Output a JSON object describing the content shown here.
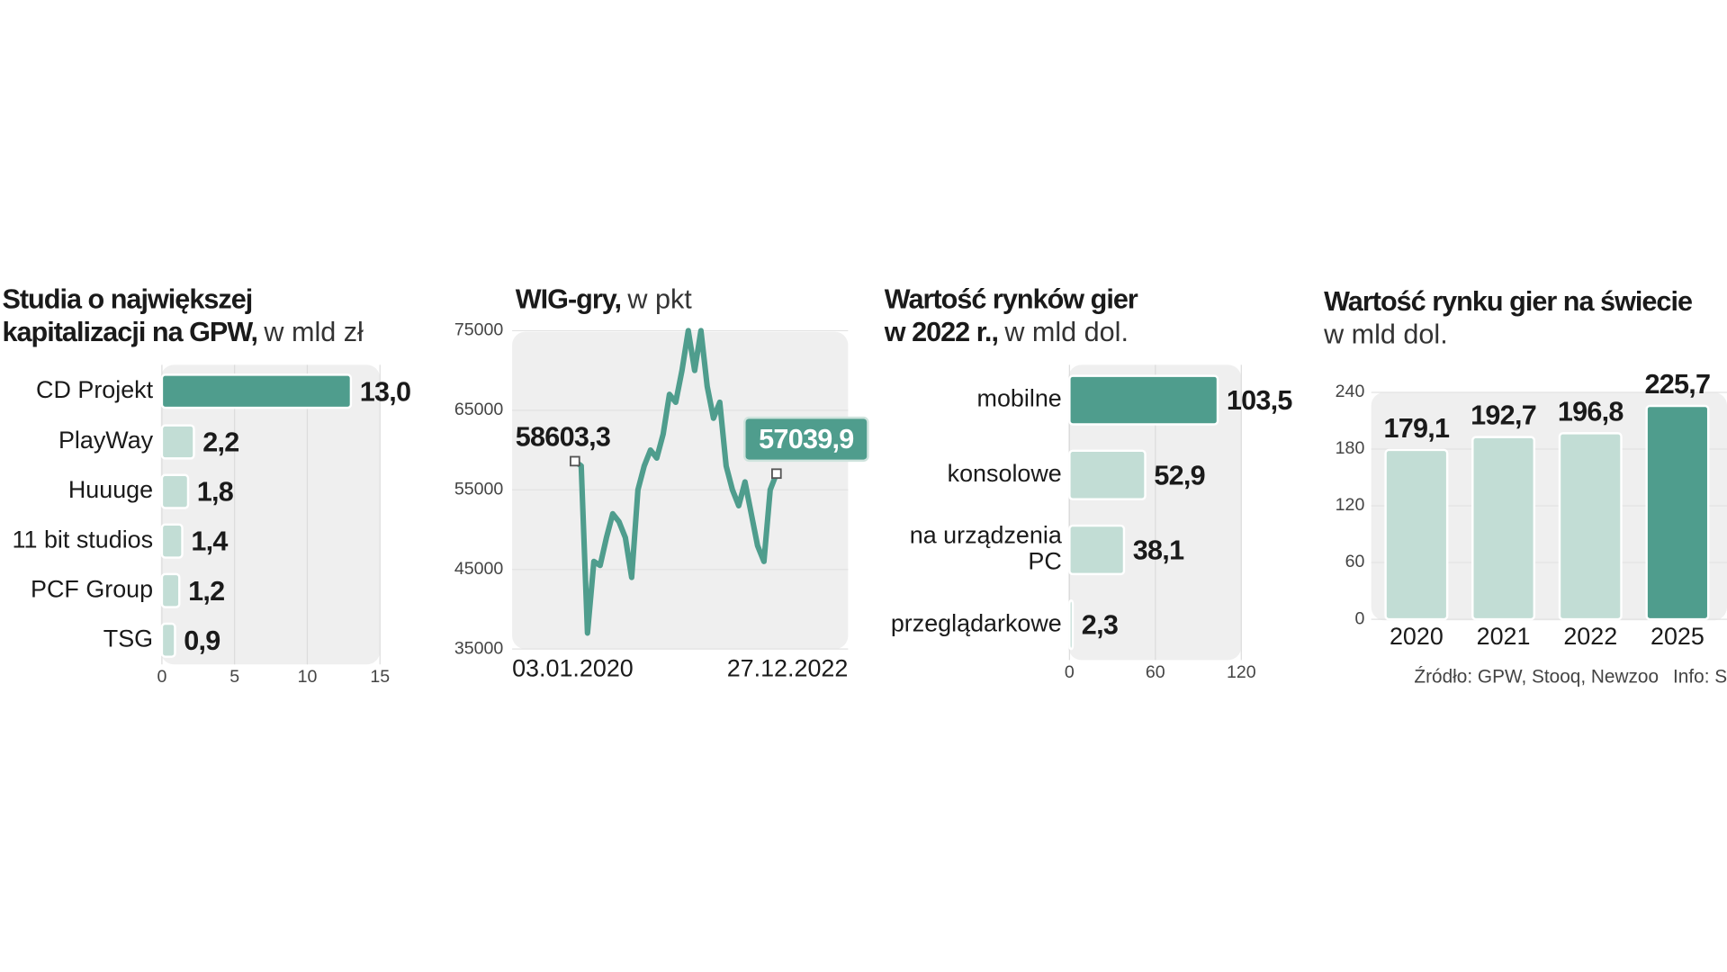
{
  "chart_data": [
    {
      "type": "hbar",
      "title": [
        "Studia o największej",
        "kapitalizacji na GPW,"
      ],
      "unit": "w mld zł",
      "categories": [
        "CD Projekt",
        "PlayWay",
        "Huuuge",
        "11 bit studios",
        "PCF Group",
        "TSG"
      ],
      "values": [
        13.0,
        2.2,
        1.8,
        1.4,
        1.2,
        0.9
      ],
      "value_labels": [
        "13,0",
        "2,2",
        "1,8",
        "1,4",
        "1,2",
        "0,9"
      ],
      "colors": [
        "#4f9d8d",
        "#c2ddd5",
        "#c2ddd5",
        "#c2ddd5",
        "#c2ddd5",
        "#c2ddd5"
      ],
      "xlim": [
        0,
        15
      ],
      "xticks": [
        0,
        5,
        10,
        15
      ],
      "grid": true
    },
    {
      "type": "line",
      "title": [
        "WIG-gry,"
      ],
      "unit": "w pkt",
      "color": "#4f9d8d",
      "x_labels": [
        "03.01.2020",
        "27.12.2022"
      ],
      "values": [
        58603.3,
        58000,
        37000,
        46000,
        45500,
        49000,
        52000,
        51000,
        49000,
        44000,
        55000,
        58000,
        60000,
        59000,
        62000,
        67000,
        66000,
        70000,
        75000,
        70000,
        75000,
        68000,
        64000,
        66000,
        58000,
        55000,
        53000,
        56000,
        52000,
        48000,
        46000,
        55000,
        57039.9
      ],
      "annotations": [
        {
          "value": 58603.3,
          "label": "58603,3"
        },
        {
          "value": 57039.9,
          "label": "57039,9"
        }
      ],
      "ylim": [
        35000,
        75000
      ],
      "yticks": [
        35000,
        45000,
        55000,
        65000,
        75000
      ],
      "grid": true
    },
    {
      "type": "hbar",
      "title": [
        "Wartość  rynków  gier",
        "w 2022 r.,"
      ],
      "unit": "w mld dol.",
      "categories": [
        "mobilne",
        "konsolowe",
        "na urządzenia PC",
        "przeglądarkowe"
      ],
      "values": [
        103.5,
        52.9,
        38.1,
        2.3
      ],
      "value_labels": [
        "103,5",
        "52,9",
        "38,1",
        "2,3"
      ],
      "colors": [
        "#4f9d8d",
        "#c2ddd5",
        "#c2ddd5",
        "#c2ddd5"
      ],
      "xlim": [
        0,
        120
      ],
      "xticks": [
        0,
        60,
        120
      ],
      "grid": true
    },
    {
      "type": "vbar",
      "title": [
        "Wartość rynku gier na świecie"
      ],
      "unit": "w mld dol.",
      "categories": [
        "2020",
        "2021",
        "2022",
        "2025"
      ],
      "values": [
        179.1,
        192.7,
        196.8,
        225.7
      ],
      "value_labels": [
        "179,1",
        "192,7",
        "196,8",
        "225,7"
      ],
      "colors": [
        "#c2ddd5",
        "#c2ddd5",
        "#c2ddd5",
        "#4f9d8d"
      ],
      "ylim": [
        0,
        240
      ],
      "yticks": [
        0,
        60,
        120,
        180,
        240
      ],
      "grid": true
    }
  ],
  "source": "Źródło: GPW, Stooq, Newzoo",
  "credit": "Info: S"
}
